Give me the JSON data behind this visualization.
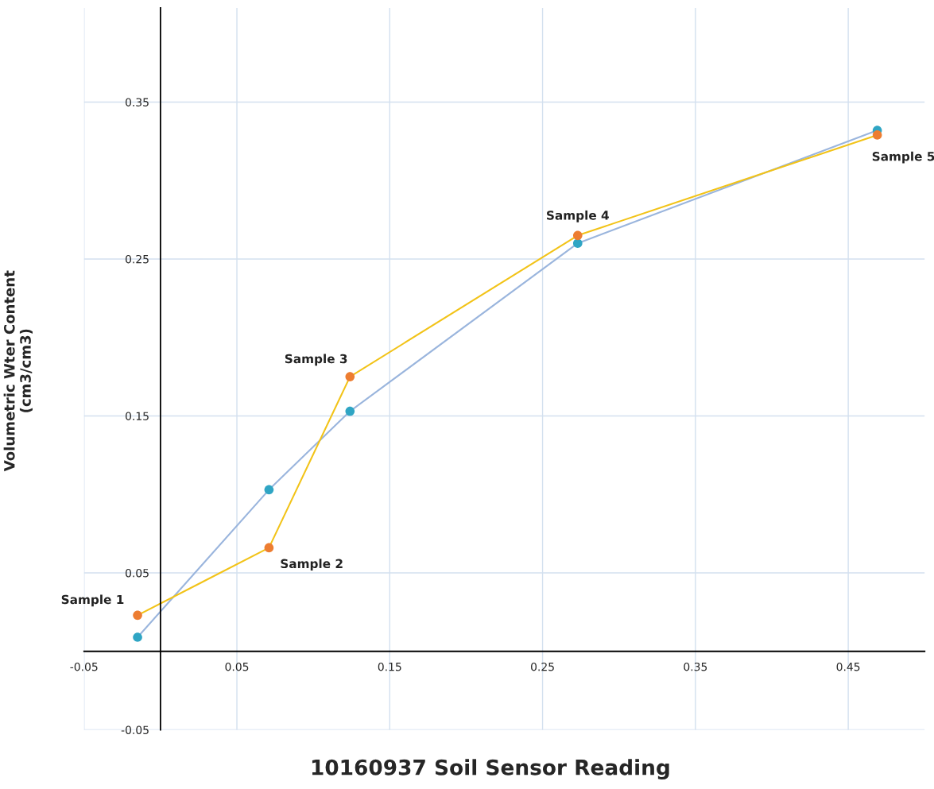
{
  "chart_data": {
    "type": "line",
    "xlabel": "10160937 Soil Sensor Reading",
    "ylabel": "Volumetric Wter Content\n(cm3/cm3)",
    "x": [
      -0.015,
      0.071,
      0.124,
      0.273,
      0.469
    ],
    "series": [
      {
        "color": "#9ab5dd",
        "colors": [
          "#2fa5c4",
          "#2fa5c4",
          "#2fa5c4",
          "#2fa5c4",
          "#2fa5c4"
        ],
        "values": [
          0.009,
          0.103,
          0.153,
          0.26,
          0.332
        ]
      },
      {
        "color": "#f2c318",
        "colors": [
          "#ed7d31",
          "#ed7d31",
          "#ed7d31",
          "#ed7d31",
          "#ed7d31"
        ],
        "values": [
          0.023,
          0.066,
          0.175,
          0.265,
          0.329
        ]
      }
    ],
    "annotations": [
      {
        "text": "Sample 1",
        "x": -0.015,
        "y": 0.023
      },
      {
        "text": "Sample 2",
        "x": 0.071,
        "y": 0.066
      },
      {
        "text": "Sample 3",
        "x": 0.124,
        "y": 0.175
      },
      {
        "text": "Sample 4",
        "x": 0.273,
        "y": 0.265
      },
      {
        "text": "Sample 5",
        "x": 0.469,
        "y": 0.329
      }
    ],
    "xlim": [
      -0.05,
      0.5
    ],
    "ylim": [
      -0.05,
      0.41
    ],
    "xticks": [
      -0.05,
      0.05,
      0.15,
      0.25,
      0.35,
      0.45
    ],
    "yticks": [
      -0.05,
      0.05,
      0.15,
      0.25,
      0.35
    ],
    "grid": true,
    "legend": false,
    "marker": "circle",
    "line_style": "solid"
  }
}
